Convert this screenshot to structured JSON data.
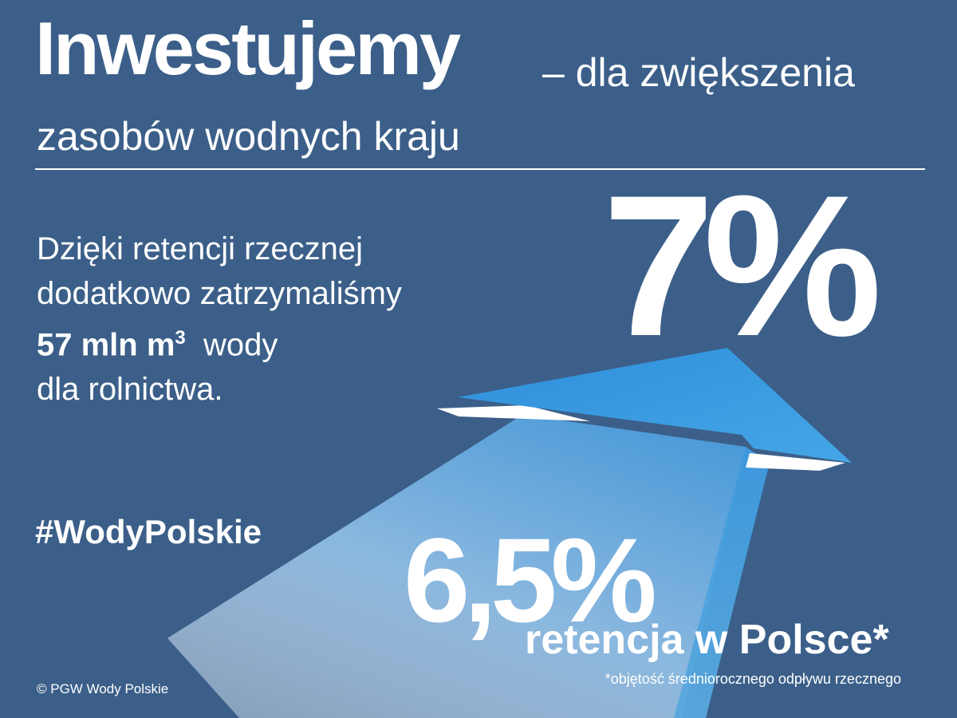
{
  "headline": {
    "bold": "Inwestujemy",
    "rest": "– dla zwiększenia",
    "line2": "zasobów wodnych kraju"
  },
  "body": {
    "line1": "Dzięki retencji rzecznej",
    "line2": "dodatkowo zatrzymaliśmy",
    "amount": "57 mln m",
    "amount_superscript": "3",
    "after_amount": "wody",
    "line4": "dla rolnictwa."
  },
  "target_percent": "7%",
  "current_percent": "6,5%",
  "retention_label": "retencja w Polsce*",
  "footnote": "*objętość średniorocznego odpływu rzecznego",
  "hashtag": "#WodyPolskie",
  "copyright": "© PGW Wody Polskie",
  "colors": {
    "background": "#3b5f89",
    "arrow_blue": "#3d9be0",
    "arrow_light": "#a9c8e4",
    "text": "#ffffff"
  },
  "icons": {
    "arrow": "upward-arrow-graphic"
  }
}
